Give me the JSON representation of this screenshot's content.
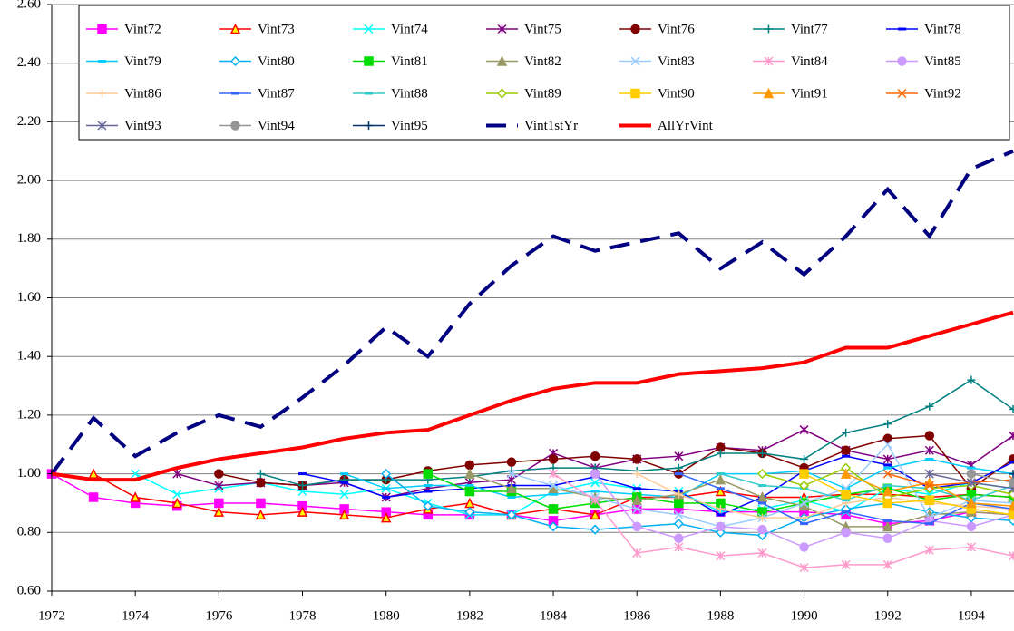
{
  "chart_data": {
    "type": "line",
    "x": [
      1972,
      1973,
      1974,
      1975,
      1976,
      1977,
      1978,
      1979,
      1980,
      1981,
      1982,
      1983,
      1984,
      1985,
      1986,
      1987,
      1988,
      1989,
      1990,
      1991,
      1992,
      1993,
      1994,
      1995
    ],
    "xlim": [
      1972,
      1995
    ],
    "xticks": [
      1972,
      1974,
      1976,
      1978,
      1980,
      1982,
      1984,
      1986,
      1988,
      1990,
      1992,
      1994
    ],
    "ylim": [
      0.6,
      2.6
    ],
    "yticks": [
      {
        "value": 0.6,
        "label": "0.60"
      },
      {
        "value": 0.8,
        "label": "0.80"
      },
      {
        "value": 1.0,
        "label": "1.00"
      },
      {
        "value": 1.2,
        "label": "1.20"
      },
      {
        "value": 1.4,
        "label": "1.40"
      },
      {
        "value": 1.6,
        "label": "1.60"
      },
      {
        "value": 1.8,
        "label": "1.80"
      },
      {
        "value": 2.0,
        "label": "2.00"
      },
      {
        "value": 2.2,
        "label": "2.20"
      },
      {
        "value": 2.4,
        "label": "2.40"
      },
      {
        "value": 2.6,
        "label": "2.60"
      }
    ],
    "grid": true,
    "series": [
      {
        "name": "Vint72",
        "color": "#ff00ff",
        "marker": "square",
        "values": [
          1.0,
          0.92,
          0.9,
          0.89,
          0.9,
          0.9,
          0.89,
          0.88,
          0.87,
          0.86,
          0.86,
          0.86,
          0.84,
          0.86,
          0.88,
          0.88,
          0.87,
          0.87,
          0.87,
          0.86,
          0.83,
          0.84,
          0.87,
          0.86
        ]
      },
      {
        "name": "Vint73",
        "color": "#ff0000",
        "marker": "triangle",
        "values": [
          null,
          1.0,
          0.92,
          0.9,
          0.87,
          0.86,
          0.87,
          0.86,
          0.85,
          0.88,
          0.9,
          0.86,
          0.88,
          0.86,
          0.92,
          0.92,
          0.94,
          0.92,
          0.92,
          0.93,
          0.93,
          0.92,
          0.93,
          0.92
        ]
      },
      {
        "name": "Vint74",
        "color": "#00ffff",
        "marker": "x",
        "values": [
          null,
          null,
          1.0,
          0.93,
          0.95,
          0.97,
          0.94,
          0.93,
          0.95,
          0.9,
          0.86,
          0.86,
          0.94,
          0.97,
          0.95,
          0.94,
          0.87,
          0.88,
          0.91,
          0.87,
          0.95,
          0.93,
          0.97,
          0.95
        ]
      },
      {
        "name": "Vint75",
        "color": "#800080",
        "marker": "star",
        "values": [
          null,
          null,
          null,
          1.0,
          0.96,
          0.97,
          0.96,
          0.97,
          0.92,
          0.95,
          0.97,
          0.98,
          1.07,
          1.02,
          1.05,
          1.06,
          1.09,
          1.08,
          1.15,
          1.08,
          1.05,
          1.08,
          1.03,
          1.13
        ]
      },
      {
        "name": "Vint76",
        "color": "#800000",
        "marker": "circle",
        "values": [
          null,
          null,
          null,
          null,
          1.0,
          0.97,
          0.96,
          0.98,
          0.98,
          1.01,
          1.03,
          1.04,
          1.05,
          1.06,
          1.05,
          1.0,
          1.09,
          1.07,
          1.02,
          1.08,
          1.12,
          1.13,
          0.95,
          1.05
        ]
      },
      {
        "name": "Vint77",
        "color": "#008080",
        "marker": "plus",
        "values": [
          null,
          null,
          null,
          null,
          null,
          1.0,
          0.96,
          0.98,
          0.98,
          0.98,
          0.99,
          1.01,
          1.02,
          1.02,
          1.01,
          1.02,
          1.07,
          1.07,
          1.05,
          1.14,
          1.17,
          1.23,
          1.32,
          1.22
        ]
      },
      {
        "name": "Vint78",
        "color": "#0000ff",
        "marker": "dash",
        "values": [
          null,
          null,
          null,
          null,
          null,
          null,
          1.0,
          0.97,
          0.92,
          0.94,
          0.95,
          0.96,
          0.96,
          0.99,
          0.95,
          0.94,
          0.86,
          0.92,
          1.01,
          1.06,
          1.03,
          0.95,
          0.97,
          1.04
        ]
      },
      {
        "name": "Vint79",
        "color": "#00ccff",
        "marker": "dash",
        "values": [
          null,
          null,
          null,
          null,
          null,
          null,
          null,
          1.0,
          0.95,
          0.96,
          0.96,
          0.92,
          0.93,
          0.94,
          0.93,
          0.92,
          1.0,
          1.0,
          1.01,
          0.95,
          1.02,
          1.05,
          1.02,
          1.0
        ]
      },
      {
        "name": "Vint80",
        "color": "#00b0f0",
        "marker": "diamond",
        "values": [
          null,
          null,
          null,
          null,
          null,
          null,
          null,
          null,
          1.0,
          0.89,
          0.87,
          0.86,
          0.82,
          0.81,
          0.82,
          0.83,
          0.8,
          0.79,
          0.85,
          0.88,
          0.9,
          0.87,
          0.85,
          0.84
        ]
      },
      {
        "name": "Vint81",
        "color": "#00dd00",
        "marker": "square",
        "values": [
          null,
          null,
          null,
          null,
          null,
          null,
          null,
          null,
          null,
          1.0,
          0.94,
          0.94,
          0.88,
          0.9,
          0.92,
          0.9,
          0.9,
          0.87,
          0.9,
          0.93,
          0.95,
          0.91,
          0.93,
          0.92
        ]
      },
      {
        "name": "Vint82",
        "color": "#999966",
        "marker": "triangle",
        "values": [
          null,
          null,
          null,
          null,
          null,
          null,
          null,
          null,
          null,
          null,
          1.0,
          0.95,
          0.95,
          0.92,
          0.91,
          0.93,
          0.98,
          0.92,
          0.89,
          0.82,
          0.82,
          0.86,
          0.87,
          0.86
        ]
      },
      {
        "name": "Vint83",
        "color": "#99ccff",
        "marker": "x",
        "values": [
          null,
          null,
          null,
          null,
          null,
          null,
          null,
          null,
          null,
          null,
          null,
          1.0,
          0.96,
          0.92,
          0.88,
          0.86,
          0.82,
          0.85,
          0.9,
          0.95,
          1.1,
          0.85,
          0.91,
          0.9
        ]
      },
      {
        "name": "Vint84",
        "color": "#ff99cc",
        "marker": "star",
        "values": [
          null,
          null,
          null,
          null,
          null,
          null,
          null,
          null,
          null,
          null,
          null,
          null,
          1.0,
          0.91,
          0.73,
          0.75,
          0.72,
          0.73,
          0.68,
          0.69,
          0.69,
          0.74,
          0.75,
          0.72
        ]
      },
      {
        "name": "Vint85",
        "color": "#cc99ff",
        "marker": "circle",
        "values": [
          null,
          null,
          null,
          null,
          null,
          null,
          null,
          null,
          null,
          null,
          null,
          null,
          null,
          1.0,
          0.82,
          0.78,
          0.82,
          0.81,
          0.75,
          0.8,
          0.78,
          0.84,
          0.82,
          0.86
        ]
      },
      {
        "name": "Vint86",
        "color": "#ffcc99",
        "marker": "plus",
        "values": [
          null,
          null,
          null,
          null,
          null,
          null,
          null,
          null,
          null,
          null,
          null,
          null,
          null,
          null,
          1.0,
          0.93,
          0.88,
          0.85,
          0.85,
          0.9,
          0.92,
          0.9,
          0.89,
          0.88
        ]
      },
      {
        "name": "Vint87",
        "color": "#3366ff",
        "marker": "dash",
        "values": [
          null,
          null,
          null,
          null,
          null,
          null,
          null,
          null,
          null,
          null,
          null,
          null,
          null,
          null,
          null,
          1.0,
          0.95,
          0.9,
          0.83,
          0.87,
          0.84,
          0.83,
          0.9,
          0.88
        ]
      },
      {
        "name": "Vint88",
        "color": "#33cccc",
        "marker": "dash",
        "values": [
          null,
          null,
          null,
          null,
          null,
          null,
          null,
          null,
          null,
          null,
          null,
          null,
          null,
          null,
          null,
          null,
          1.0,
          0.96,
          0.95,
          0.91,
          0.96,
          0.95,
          0.91,
          0.96
        ]
      },
      {
        "name": "Vint89",
        "color": "#99cc00",
        "marker": "diamond",
        "values": [
          null,
          null,
          null,
          null,
          null,
          null,
          null,
          null,
          null,
          null,
          null,
          null,
          null,
          null,
          null,
          null,
          null,
          1.0,
          0.96,
          1.02,
          0.92,
          0.95,
          0.96,
          0.93
        ]
      },
      {
        "name": "Vint90",
        "color": "#ffcc00",
        "marker": "square",
        "values": [
          null,
          null,
          null,
          null,
          null,
          null,
          null,
          null,
          null,
          null,
          null,
          null,
          null,
          null,
          null,
          null,
          null,
          null,
          1.0,
          0.93,
          0.9,
          0.91,
          0.88,
          0.86
        ]
      },
      {
        "name": "Vint91",
        "color": "#ff9900",
        "marker": "triangle",
        "values": [
          null,
          null,
          null,
          null,
          null,
          null,
          null,
          null,
          null,
          null,
          null,
          null,
          null,
          null,
          null,
          null,
          null,
          null,
          null,
          1.0,
          0.94,
          0.97,
          0.9,
          0.89
        ]
      },
      {
        "name": "Vint92",
        "color": "#ff6600",
        "marker": "x",
        "values": [
          null,
          null,
          null,
          null,
          null,
          null,
          null,
          null,
          null,
          null,
          null,
          null,
          null,
          null,
          null,
          null,
          null,
          null,
          null,
          null,
          1.0,
          0.96,
          0.97,
          0.98
        ]
      },
      {
        "name": "Vint93",
        "color": "#666699",
        "marker": "star",
        "values": [
          null,
          null,
          null,
          null,
          null,
          null,
          null,
          null,
          null,
          null,
          null,
          null,
          null,
          null,
          null,
          null,
          null,
          null,
          null,
          null,
          null,
          1.0,
          0.97,
          0.95
        ]
      },
      {
        "name": "Vint94",
        "color": "#969696",
        "marker": "circle",
        "values": [
          null,
          null,
          null,
          null,
          null,
          null,
          null,
          null,
          null,
          null,
          null,
          null,
          null,
          null,
          null,
          null,
          null,
          null,
          null,
          null,
          null,
          null,
          1.0,
          0.97
        ]
      },
      {
        "name": "Vint95",
        "color": "#003366",
        "marker": "plus",
        "values": [
          null,
          null,
          null,
          null,
          null,
          null,
          null,
          null,
          null,
          null,
          null,
          null,
          null,
          null,
          null,
          null,
          null,
          null,
          null,
          null,
          null,
          null,
          null,
          1.0
        ]
      },
      {
        "name": "Vint1stYr",
        "color": "#000080",
        "style": "dashed",
        "width": 4,
        "values": [
          1.0,
          1.19,
          1.06,
          1.14,
          1.2,
          1.16,
          1.26,
          1.37,
          1.5,
          1.4,
          1.58,
          1.71,
          1.81,
          1.76,
          1.79,
          1.82,
          1.7,
          1.79,
          1.68,
          1.81,
          1.97,
          1.81,
          2.04,
          2.1
        ]
      },
      {
        "name": "AllYrVint",
        "color": "#ff0000",
        "width": 4,
        "values": [
          1.0,
          0.98,
          0.98,
          1.02,
          1.05,
          1.07,
          1.09,
          1.12,
          1.14,
          1.15,
          1.2,
          1.25,
          1.29,
          1.31,
          1.31,
          1.34,
          1.35,
          1.36,
          1.38,
          1.43,
          1.43,
          1.47,
          1.51,
          1.55
        ]
      }
    ]
  }
}
